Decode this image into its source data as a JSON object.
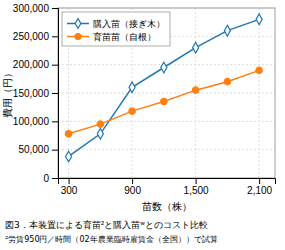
{
  "chart_data": {
    "type": "line",
    "title": "図3．本装置による育苗²と購入苗ʷとのコスト比較",
    "annotations": [
      "²労賃950円／時間（02年農業臨時雇賃金（全国））で試算"
    ],
    "xlabel": "苗数（株）",
    "ylabel": "費用（円）",
    "x": [
      300,
      600,
      900,
      1200,
      1500,
      1800,
      2100
    ],
    "series": [
      {
        "name": "購入苗（接ぎ木）",
        "marker": "diamond",
        "values": [
          38000,
          78000,
          160000,
          195000,
          230000,
          260000,
          280000
        ]
      },
      {
        "name": "育苗苗（自根）",
        "marker": "circle",
        "values": [
          78000,
          95000,
          118000,
          135000,
          155000,
          170000,
          190000
        ]
      }
    ],
    "xlim": [
      200,
      2250
    ],
    "xticks": [
      300,
      900,
      {
        "value": 1500,
        "label": "1,500"
      },
      {
        "value": 2100,
        "label": "2,100"
      }
    ],
    "ylim": [
      0,
      300000
    ],
    "yticks": [
      0,
      {
        "value": 50000,
        "label": "50,000"
      },
      {
        "value": 100000,
        "label": "100,000"
      },
      {
        "value": 150000,
        "label": "150,000"
      },
      {
        "value": 200000,
        "label": "200,000"
      },
      {
        "value": 250000,
        "label": "250,000"
      },
      {
        "value": 300000,
        "label": "300,000"
      }
    ],
    "grid": true,
    "legend": "upper left"
  }
}
